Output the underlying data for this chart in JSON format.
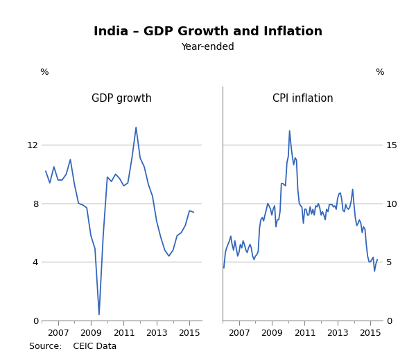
{
  "title": "India – GDP Growth and Inflation",
  "subtitle": "Year-ended",
  "left_label": "GDP growth",
  "right_label": "CPI inflation",
  "source": "Source:    CEIC Data",
  "line_color": "#3366bb",
  "line_width": 1.3,
  "gdp_ylim": [
    0,
    16
  ],
  "cpi_ylim": [
    0,
    20
  ],
  "gdp_yticks": [
    0,
    4,
    8,
    12
  ],
  "cpi_yticks": [
    0,
    5,
    10,
    15
  ],
  "gdp_x": [
    2006.25,
    2006.5,
    2006.75,
    2007.0,
    2007.25,
    2007.5,
    2007.75,
    2008.0,
    2008.25,
    2008.5,
    2008.75,
    2009.0,
    2009.25,
    2009.5,
    2009.75,
    2010.0,
    2010.25,
    2010.5,
    2010.75,
    2011.0,
    2011.25,
    2011.5,
    2011.75,
    2012.0,
    2012.25,
    2012.5,
    2012.75,
    2013.0,
    2013.25,
    2013.5,
    2013.75,
    2014.0,
    2014.25,
    2014.5,
    2014.75,
    2015.0,
    2015.25
  ],
  "gdp_y": [
    10.2,
    9.4,
    10.5,
    9.6,
    9.6,
    10.0,
    11.0,
    9.3,
    8.0,
    7.9,
    7.7,
    5.8,
    4.9,
    0.4,
    5.8,
    9.8,
    9.5,
    10.0,
    9.7,
    9.2,
    9.4,
    11.1,
    13.2,
    11.1,
    10.5,
    9.3,
    8.5,
    6.8,
    5.7,
    4.8,
    4.4,
    4.8,
    5.8,
    6.0,
    6.5,
    7.5,
    7.4
  ],
  "cpi_x": [
    2006.08,
    2006.17,
    2006.25,
    2006.33,
    2006.42,
    2006.5,
    2006.58,
    2006.67,
    2006.75,
    2006.83,
    2006.92,
    2007.0,
    2007.08,
    2007.17,
    2007.25,
    2007.33,
    2007.42,
    2007.5,
    2007.58,
    2007.67,
    2007.75,
    2007.83,
    2007.92,
    2008.0,
    2008.08,
    2008.17,
    2008.25,
    2008.33,
    2008.42,
    2008.5,
    2008.58,
    2008.67,
    2008.75,
    2008.83,
    2008.92,
    2009.0,
    2009.08,
    2009.17,
    2009.25,
    2009.33,
    2009.42,
    2009.5,
    2009.58,
    2009.67,
    2009.75,
    2009.83,
    2009.92,
    2010.0,
    2010.08,
    2010.17,
    2010.25,
    2010.33,
    2010.42,
    2010.5,
    2010.58,
    2010.67,
    2010.75,
    2010.83,
    2010.92,
    2011.0,
    2011.08,
    2011.17,
    2011.25,
    2011.33,
    2011.42,
    2011.5,
    2011.58,
    2011.67,
    2011.75,
    2011.83,
    2011.92,
    2012.0,
    2012.08,
    2012.17,
    2012.25,
    2012.33,
    2012.42,
    2012.5,
    2012.58,
    2012.67,
    2012.75,
    2012.83,
    2012.92,
    2013.0,
    2013.08,
    2013.17,
    2013.25,
    2013.33,
    2013.42,
    2013.5,
    2013.58,
    2013.67,
    2013.75,
    2013.83,
    2013.92,
    2014.0,
    2014.08,
    2014.17,
    2014.25,
    2014.33,
    2014.42,
    2014.5,
    2014.58,
    2014.67,
    2014.75,
    2014.83,
    2014.92,
    2015.0,
    2015.08,
    2015.17,
    2015.25,
    2015.33,
    2015.42
  ],
  "cpi_y": [
    4.5,
    5.8,
    6.2,
    6.5,
    6.8,
    7.2,
    6.5,
    6.0,
    6.8,
    6.2,
    5.5,
    5.8,
    6.5,
    6.2,
    6.8,
    6.5,
    6.0,
    5.8,
    6.2,
    6.5,
    6.2,
    5.5,
    5.2,
    5.5,
    5.6,
    5.9,
    7.9,
    8.6,
    8.8,
    8.5,
    9.0,
    9.5,
    10.0,
    9.8,
    9.5,
    9.0,
    9.5,
    9.8,
    8.0,
    8.6,
    8.6,
    9.3,
    11.7,
    11.7,
    11.6,
    11.5,
    13.5,
    14.0,
    16.2,
    14.9,
    14.0,
    13.3,
    13.9,
    13.7,
    11.2,
    10.0,
    9.8,
    9.7,
    8.3,
    9.5,
    9.5,
    9.0,
    9.0,
    9.7,
    9.1,
    9.5,
    9.0,
    9.8,
    9.7,
    10.0,
    9.6,
    9.0,
    9.3,
    9.0,
    8.6,
    9.5,
    9.3,
    9.9,
    9.9,
    9.9,
    9.7,
    9.8,
    9.5,
    10.4,
    10.8,
    10.9,
    10.4,
    9.4,
    9.3,
    9.9,
    9.6,
    9.5,
    9.7,
    10.2,
    11.2,
    9.9,
    8.8,
    8.1,
    8.3,
    8.6,
    8.3,
    7.5,
    8.0,
    7.8,
    6.5,
    5.5,
    5.0,
    5.0,
    5.2,
    5.4,
    4.2,
    4.8,
    5.2
  ]
}
